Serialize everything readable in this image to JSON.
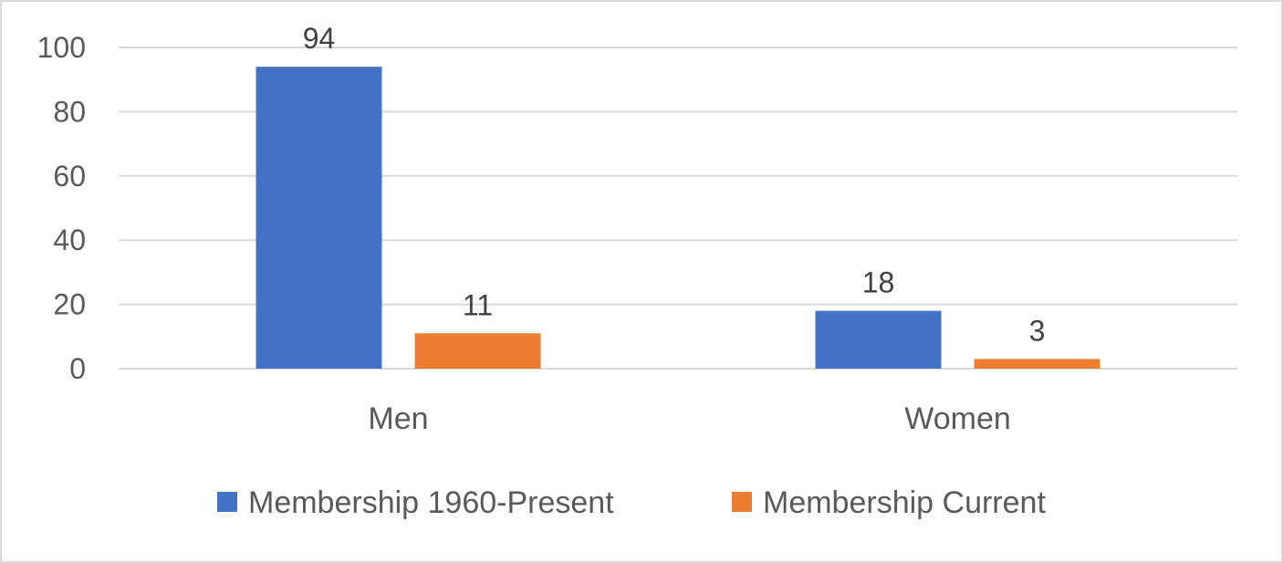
{
  "chart_data": {
    "type": "bar",
    "categories": [
      "Men",
      "Women"
    ],
    "series": [
      {
        "name": "Membership 1960-Present",
        "values": [
          94,
          18
        ],
        "color": "#4472c4"
      },
      {
        "name": "Membership Current",
        "values": [
          11,
          3
        ],
        "color": "#ed7d31"
      }
    ],
    "ylim": [
      0,
      100
    ],
    "yticks": [
      0,
      20,
      40,
      60,
      80,
      100
    ],
    "grid": true,
    "legend_position": "bottom",
    "data_labels": true,
    "gridline_color": "#d9d9d9"
  }
}
